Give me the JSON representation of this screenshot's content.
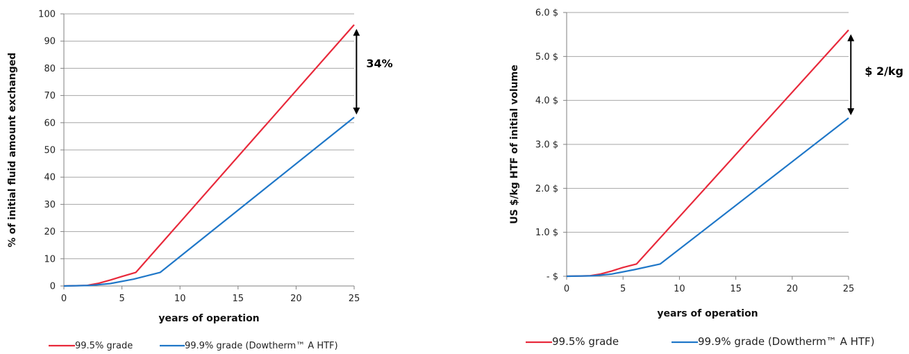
{
  "colors": {
    "red": "#e8293b",
    "blue": "#1f77c8",
    "grid": "#a6a6a6",
    "axis": "#7f7f7f"
  },
  "chart_data": [
    {
      "type": "line",
      "title": "",
      "xlabel": "years of operation",
      "ylabel": "% of initial fluid amount exchanged",
      "xlim": [
        0,
        25
      ],
      "ylim": [
        0,
        100
      ],
      "xticks": [
        0,
        5,
        10,
        15,
        20,
        25
      ],
      "xtick_labels": [
        "0",
        "5",
        "10",
        "15",
        "20",
        "25"
      ],
      "yticks": [
        0,
        10,
        20,
        30,
        40,
        50,
        60,
        70,
        80,
        90,
        100
      ],
      "ytick_labels": [
        "0",
        "10",
        "20",
        "30",
        "40",
        "50",
        "60",
        "70",
        "80",
        "90",
        "100"
      ],
      "grid": true,
      "legend_position": "bottom",
      "series": [
        {
          "name": "99.5% grade",
          "color": "#e8293b",
          "x": [
            0,
            2,
            3,
            4,
            5,
            6.2,
            25
          ],
          "y": [
            0,
            0.2,
            1,
            2.2,
            3.5,
            5,
            96
          ]
        },
        {
          "name": "99.9% grade (Dowtherm™ A HTF)",
          "color": "#1f77c8",
          "x": [
            0,
            2.3,
            4,
            6,
            8.3,
            25
          ],
          "y": [
            0,
            0.2,
            0.9,
            2.5,
            5,
            62
          ]
        }
      ],
      "annotation": {
        "text": "34%",
        "x": 25.2,
        "y_top": 96,
        "y_bottom": 62
      }
    },
    {
      "type": "line",
      "title": "",
      "xlabel": "years of operation",
      "ylabel": "US $/kg HTF of initial volume",
      "xlim": [
        0,
        25
      ],
      "ylim": [
        0,
        6
      ],
      "xticks": [
        0,
        5,
        10,
        15,
        20,
        25
      ],
      "xtick_labels": [
        "0",
        "5",
        "10",
        "15",
        "20",
        "25"
      ],
      "yticks": [
        0,
        1,
        2,
        3,
        4,
        5,
        6
      ],
      "ytick_labels": [
        "-  $",
        "1.0 $",
        "2.0 $",
        "3.0 $",
        "4.0 $",
        "5.0 $",
        "6.0 $"
      ],
      "grid": true,
      "legend_position": "bottom",
      "series": [
        {
          "name": "99.5% grade",
          "color": "#e8293b",
          "x": [
            0,
            2,
            3,
            4,
            5,
            6.2,
            25
          ],
          "y": [
            0,
            0.01,
            0.05,
            0.12,
            0.2,
            0.28,
            5.6
          ]
        },
        {
          "name": "99.9% grade (Dowtherm™ A HTF)",
          "color": "#1f77c8",
          "x": [
            0,
            2.3,
            4,
            6,
            8.3,
            25
          ],
          "y": [
            0,
            0.01,
            0.05,
            0.15,
            0.28,
            3.6
          ]
        }
      ],
      "annotation": {
        "text": "$ 2/kg",
        "x": 25.2,
        "y_top": 5.6,
        "y_bottom": 3.6
      }
    }
  ]
}
